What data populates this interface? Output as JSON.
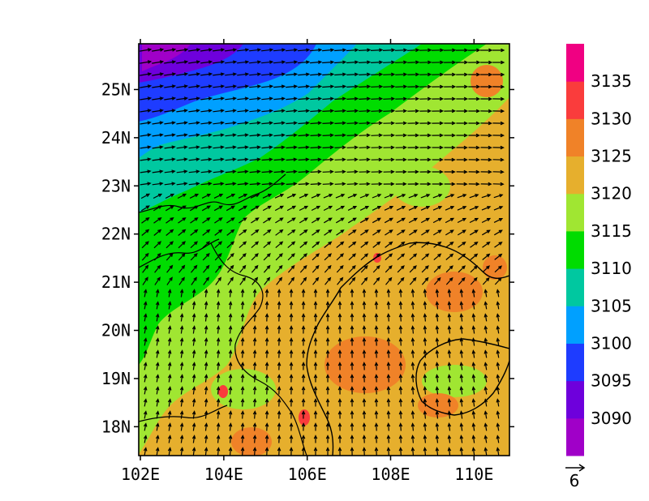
{
  "map": {
    "lat_labels": [
      "18N",
      "19N",
      "20N",
      "21N",
      "22N",
      "23N",
      "24N",
      "25N"
    ],
    "lon_labels": [
      "102E",
      "104E",
      "106E",
      "108E",
      "110E"
    ],
    "lat_range": [
      17.4,
      25.95
    ],
    "lon_range": [
      101.96,
      110.85
    ]
  },
  "colorbar": {
    "levels": [
      "3090",
      "3095",
      "3100",
      "3105",
      "3110",
      "3115",
      "3120",
      "3125",
      "3130",
      "3135"
    ],
    "colors": [
      "#a000c8",
      "#6e00dc",
      "#1e3cff",
      "#00a0ff",
      "#00c8a0",
      "#00dc00",
      "#a0e632",
      "#e6af2d",
      "#f08228",
      "#fa3c3c",
      "#f00082"
    ]
  },
  "wind": {
    "reference_value": "6"
  }
}
